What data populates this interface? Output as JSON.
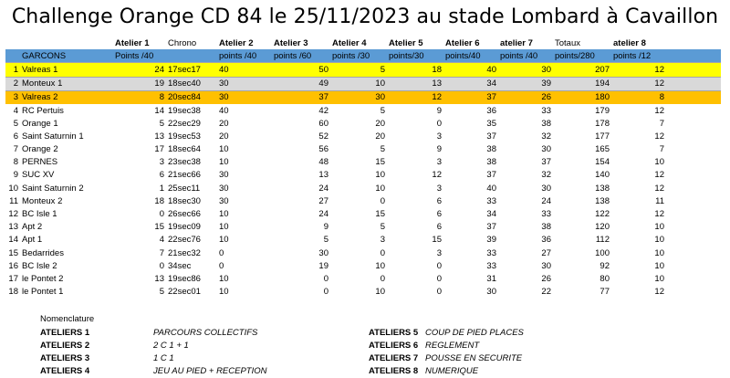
{
  "title": "Challenge Orange CD 84 le 25/11/2023 au stade Lombard à Cavaillon",
  "header1": [
    "",
    "Atelier 1",
    "Chrono",
    "Atelier 2",
    "Atelier 3",
    "Atelier 4",
    "Atelier 5",
    "Atelier 6",
    "atelier 7",
    "Totaux",
    "atelier 8"
  ],
  "header2": [
    "GARCONS",
    "Points /40",
    "",
    "points /40",
    "points /60",
    "points /30",
    "points/30",
    "points/40",
    "points /40",
    "points/280",
    "points /12"
  ],
  "rows": [
    {
      "rank": "1",
      "team": "Valreas 1",
      "a1": "24",
      "chrono": "17sec17",
      "a2": "40",
      "a3": "50",
      "a4": "5",
      "a5": "18",
      "a6": "40",
      "a7": "30",
      "total": "207",
      "a8": "12"
    },
    {
      "rank": "2",
      "team": "Monteux 1",
      "a1": "19",
      "chrono": "18sec40",
      "a2": "30",
      "a3": "49",
      "a4": "10",
      "a5": "13",
      "a6": "34",
      "a7": "39",
      "total": "194",
      "a8": "12"
    },
    {
      "rank": "3",
      "team": "Valreas 2",
      "a1": "8",
      "chrono": "20sec84",
      "a2": "30",
      "a3": "37",
      "a4": "30",
      "a5": "12",
      "a6": "37",
      "a7": "26",
      "total": "180",
      "a8": "8"
    },
    {
      "rank": "4",
      "team": "RC Pertuis",
      "a1": "14",
      "chrono": "19sec38",
      "a2": "40",
      "a3": "42",
      "a4": "5",
      "a5": "9",
      "a6": "36",
      "a7": "33",
      "total": "179",
      "a8": "12"
    },
    {
      "rank": "5",
      "team": "Orange 1",
      "a1": "5",
      "chrono": "22sec29",
      "a2": "20",
      "a3": "60",
      "a4": "20",
      "a5": "0",
      "a6": "35",
      "a7": "38",
      "total": "178",
      "a8": "7"
    },
    {
      "rank": "6",
      "team": "Saint Saturnin 1",
      "a1": "13",
      "chrono": "19sec53",
      "a2": "20",
      "a3": "52",
      "a4": "20",
      "a5": "3",
      "a6": "37",
      "a7": "32",
      "total": "177",
      "a8": "12"
    },
    {
      "rank": "7",
      "team": "Orange 2",
      "a1": "17",
      "chrono": "18sec64",
      "a2": "10",
      "a3": "56",
      "a4": "5",
      "a5": "9",
      "a6": "38",
      "a7": "30",
      "total": "165",
      "a8": "7"
    },
    {
      "rank": "8",
      "team": "PERNES",
      "a1": "3",
      "chrono": "23sec38",
      "a2": "10",
      "a3": "48",
      "a4": "15",
      "a5": "3",
      "a6": "38",
      "a7": "37",
      "total": "154",
      "a8": "10"
    },
    {
      "rank": "9",
      "team": "SUC XV",
      "a1": "6",
      "chrono": "21sec66",
      "a2": "30",
      "a3": "13",
      "a4": "10",
      "a5": "12",
      "a6": "37",
      "a7": "32",
      "total": "140",
      "a8": "12"
    },
    {
      "rank": "10",
      "team": "Saint Saturnin 2",
      "a1": "1",
      "chrono": "25sec11",
      "a2": "30",
      "a3": "24",
      "a4": "10",
      "a5": "3",
      "a6": "40",
      "a7": "30",
      "total": "138",
      "a8": "12"
    },
    {
      "rank": "11",
      "team": "Monteux 2",
      "a1": "18",
      "chrono": "18sec30",
      "a2": "30",
      "a3": "27",
      "a4": "0",
      "a5": "6",
      "a6": "33",
      "a7": "24",
      "total": "138",
      "a8": "11"
    },
    {
      "rank": "12",
      "team": "BC Isle 1",
      "a1": "0",
      "chrono": "26sec66",
      "a2": "10",
      "a3": "24",
      "a4": "15",
      "a5": "6",
      "a6": "34",
      "a7": "33",
      "total": "122",
      "a8": "12"
    },
    {
      "rank": "13",
      "team": "Apt 2",
      "a1": "15",
      "chrono": "19sec09",
      "a2": "10",
      "a3": "9",
      "a4": "5",
      "a5": "6",
      "a6": "37",
      "a7": "38",
      "total": "120",
      "a8": "10"
    },
    {
      "rank": "14",
      "team": "Apt 1",
      "a1": "4",
      "chrono": "22sec76",
      "a2": "10",
      "a3": "5",
      "a4": "3",
      "a5": "15",
      "a6": "39",
      "a7": "36",
      "total": "112",
      "a8": "10"
    },
    {
      "rank": "15",
      "team": "Bedarrides",
      "a1": "7",
      "chrono": "21sec32",
      "a2": "0",
      "a3": "30",
      "a4": "0",
      "a5": "3",
      "a6": "33",
      "a7": "27",
      "total": "100",
      "a8": "10"
    },
    {
      "rank": "16",
      "team": "BC Isle 2",
      "a1": "0",
      "chrono": "34sec",
      "a2": "0",
      "a3": "19",
      "a4": "10",
      "a5": "0",
      "a6": "33",
      "a7": "30",
      "total": "92",
      "a8": "10"
    },
    {
      "rank": "17",
      "team": "le Pontet 2",
      "a1": "13",
      "chrono": "19sec86",
      "a2": "10",
      "a3": "0",
      "a4": "0",
      "a5": "0",
      "a6": "31",
      "a7": "26",
      "total": "80",
      "a8": "10"
    },
    {
      "rank": "18",
      "team": "le Pontet 1",
      "a1": "5",
      "chrono": "22sec01",
      "a2": "10",
      "a3": "0",
      "a4": "10",
      "a5": "0",
      "a6": "30",
      "a7": "22",
      "total": "77",
      "a8": "12"
    }
  ],
  "highlight_colors": {
    "first": "#ffff00",
    "second": "#d9d9d9",
    "third": "#ffc000",
    "header": "#5b9bd5"
  },
  "nomenclature": {
    "title": "Nomenclature",
    "left": [
      {
        "key": "ATELIERS 1",
        "value": "PARCOURS COLLECTIFS"
      },
      {
        "key": "ATELIERS 2",
        "value": "2 C 1 + 1"
      },
      {
        "key": "ATELIERS 3",
        "value": "1 C 1"
      },
      {
        "key": "ATELIERS 4",
        "value": "JEU AU PIED + RECEPTION"
      }
    ],
    "right": [
      {
        "key": "ATELIERS 5",
        "value": "COUP DE PIED PLACES"
      },
      {
        "key": "ATELIERS 6",
        "value": "REGLEMENT"
      },
      {
        "key": "ATELIERS 7",
        "value": "POUSSE EN SECURITE"
      },
      {
        "key": "ATELIERS 8",
        "value": "NUMERIQUE"
      }
    ]
  }
}
